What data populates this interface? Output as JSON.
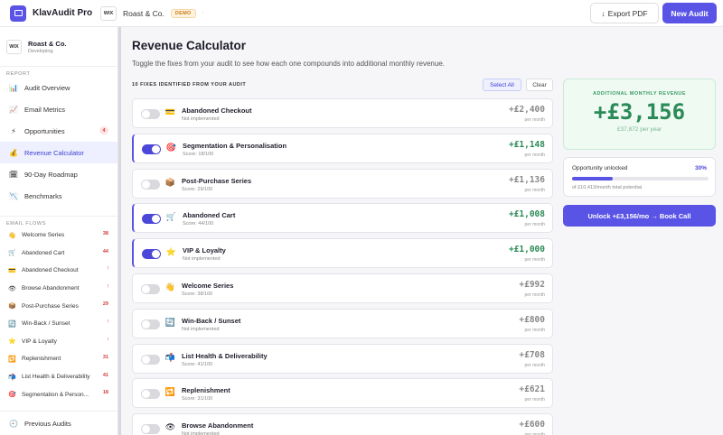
{
  "app": {
    "name": "KlavAudit Pro",
    "client_initials": "WIX",
    "client_name": "Roast & Co.",
    "badge": "DEMO",
    "client_more": "·",
    "export_label": "Export PDF",
    "export_icon": "↓",
    "new_audit_label": "New Audit"
  },
  "sidebar": {
    "workspace": {
      "initials": "WIX",
      "name": "Roast & Co.",
      "status": "Developing"
    },
    "report_heading": "REPORT",
    "report_items": [
      {
        "icon": "📊",
        "label": "Audit Overview",
        "count": ""
      },
      {
        "icon": "📈",
        "label": "Email Metrics",
        "count": ""
      },
      {
        "icon": "⚡",
        "label": "Opportunities",
        "count": "4"
      },
      {
        "icon": "💰",
        "label": "Revenue Calculator",
        "count": ""
      },
      {
        "icon": "🗓",
        "label": "90-Day Roadmap",
        "count": ""
      },
      {
        "icon": "📉",
        "label": "Benchmarks",
        "count": ""
      }
    ],
    "flows_heading": "EMAIL FLOWS",
    "flow_items": [
      {
        "icon": "👋",
        "label": "Welcome Series",
        "count": "38"
      },
      {
        "icon": "🛒",
        "label": "Abandoned Cart",
        "count": "44"
      },
      {
        "icon": "💳",
        "label": "Abandoned Checkout",
        "count": "!"
      },
      {
        "icon": "👁",
        "label": "Browse Abandonment",
        "count": "!"
      },
      {
        "icon": "📦",
        "label": "Post-Purchase Series",
        "count": "29"
      },
      {
        "icon": "🔄",
        "label": "Win-Back / Sunset",
        "count": "!"
      },
      {
        "icon": "⭐",
        "label": "VIP & Loyalty",
        "count": "!"
      },
      {
        "icon": "🔁",
        "label": "Replenishment",
        "count": "31"
      },
      {
        "icon": "📬",
        "label": "List Health & Deliverability",
        "count": "41"
      },
      {
        "icon": "🎯",
        "label": "Segmentation & Person...",
        "count": "18"
      }
    ],
    "previous_audits": {
      "icon": "🕘",
      "label": "Previous Audits"
    }
  },
  "main": {
    "title": "Revenue Calculator",
    "subtitle": "Toggle the fixes from your audit to see how each one compounds into additional monthly revenue.",
    "fix_count_label": "10 FIXES IDENTIFIED FROM YOUR AUDIT",
    "select_all_label": "Select All",
    "clear_label": "Clear",
    "per_month_label": "per month",
    "fixes": [
      {
        "icon": "💳",
        "title": "Abandoned Checkout",
        "subtitle": "Not implemented",
        "value": "+£2,400",
        "on": false
      },
      {
        "icon": "🎯",
        "title": "Segmentation & Personalisation",
        "subtitle": "Score: 18/100",
        "value": "+£1,148",
        "on": true
      },
      {
        "icon": "📦",
        "title": "Post-Purchase Series",
        "subtitle": "Score: 29/100",
        "value": "+£1,136",
        "on": false
      },
      {
        "icon": "🛒",
        "title": "Abandoned Cart",
        "subtitle": "Score: 44/100",
        "value": "+£1,008",
        "on": true
      },
      {
        "icon": "⭐",
        "title": "VIP & Loyalty",
        "subtitle": "Not implemented",
        "value": "+£1,000",
        "on": true
      },
      {
        "icon": "👋",
        "title": "Welcome Series",
        "subtitle": "Score: 38/100",
        "value": "+£992",
        "on": false
      },
      {
        "icon": "🔄",
        "title": "Win-Back / Sunset",
        "subtitle": "Not implemented",
        "value": "+£800",
        "on": false
      },
      {
        "icon": "📬",
        "title": "List Health & Deliverability",
        "subtitle": "Score: 41/100",
        "value": "+£708",
        "on": false
      },
      {
        "icon": "🔁",
        "title": "Replenishment",
        "subtitle": "Score: 31/100",
        "value": "+£621",
        "on": false
      },
      {
        "icon": "👁",
        "title": "Browse Abandonment",
        "subtitle": "Not implemented",
        "value": "+£600",
        "on": false
      }
    ]
  },
  "summary": {
    "label": "ADDITIONAL MONTHLY REVENUE",
    "amount": "+£3,156",
    "per_year": "£37,872 per year",
    "opportunity_label": "Opportunity unlocked",
    "opportunity_pct_text": "30%",
    "opportunity_fraction": 0.3,
    "opportunity_foot": "of £10,413/month total potential",
    "unlock_label": "Unlock +£3,156/mo → Book Call"
  },
  "colors": {
    "accent": "#5a54e6",
    "positive": "#2b8a57",
    "alert": "#d43a3a"
  }
}
